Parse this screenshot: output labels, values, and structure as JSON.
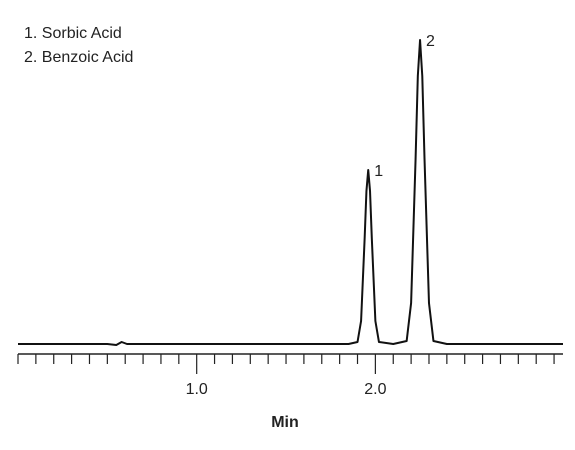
{
  "chart_data": {
    "type": "line",
    "annotations": [
      "1. Sorbic Acid",
      "2. Benzoic Acid"
    ],
    "xlabel": "Min",
    "peak_labels": [
      {
        "text": "1",
        "x": 1.96,
        "y": 174
      },
      {
        "text": "2",
        "x": 2.25,
        "y": 304
      }
    ],
    "series": [
      {
        "color": "#111111",
        "x": [
          0,
          0.5,
          0.55,
          0.58,
          0.61,
          0.7,
          1.85,
          1.9,
          1.92,
          1.94,
          1.95,
          1.96,
          1.97,
          1.98,
          2.0,
          2.02,
          2.1,
          2.175,
          2.2,
          2.225,
          2.2375,
          2.25,
          2.2625,
          2.275,
          2.3,
          2.325,
          2.4,
          3.05
        ],
        "values": [
          0,
          0,
          -1,
          2,
          0,
          0,
          0,
          2,
          23,
          106,
          153,
          174,
          153,
          106,
          23,
          2,
          0,
          3,
          41,
          185,
          268,
          304,
          268,
          185,
          41,
          3,
          0,
          0
        ]
      }
    ],
    "xlim": [
      0,
      3.05
    ],
    "ylim": [
      0,
      320
    ],
    "xticks": [
      {
        "value": 1,
        "label": "1.0"
      },
      {
        "value": 2,
        "label": "2.0"
      }
    ],
    "xminorticks": [
      0,
      0.1,
      0.2,
      0.3,
      0.4,
      0.5,
      0.6,
      0.7,
      0.8,
      0.9,
      1.1,
      1.2,
      1.3,
      1.4,
      1.5,
      1.6,
      1.7,
      1.8,
      1.9,
      2.1,
      2.2,
      2.3,
      2.4,
      2.5,
      2.6,
      2.7,
      2.8,
      2.9,
      3.0
    ],
    "grid": false
  }
}
